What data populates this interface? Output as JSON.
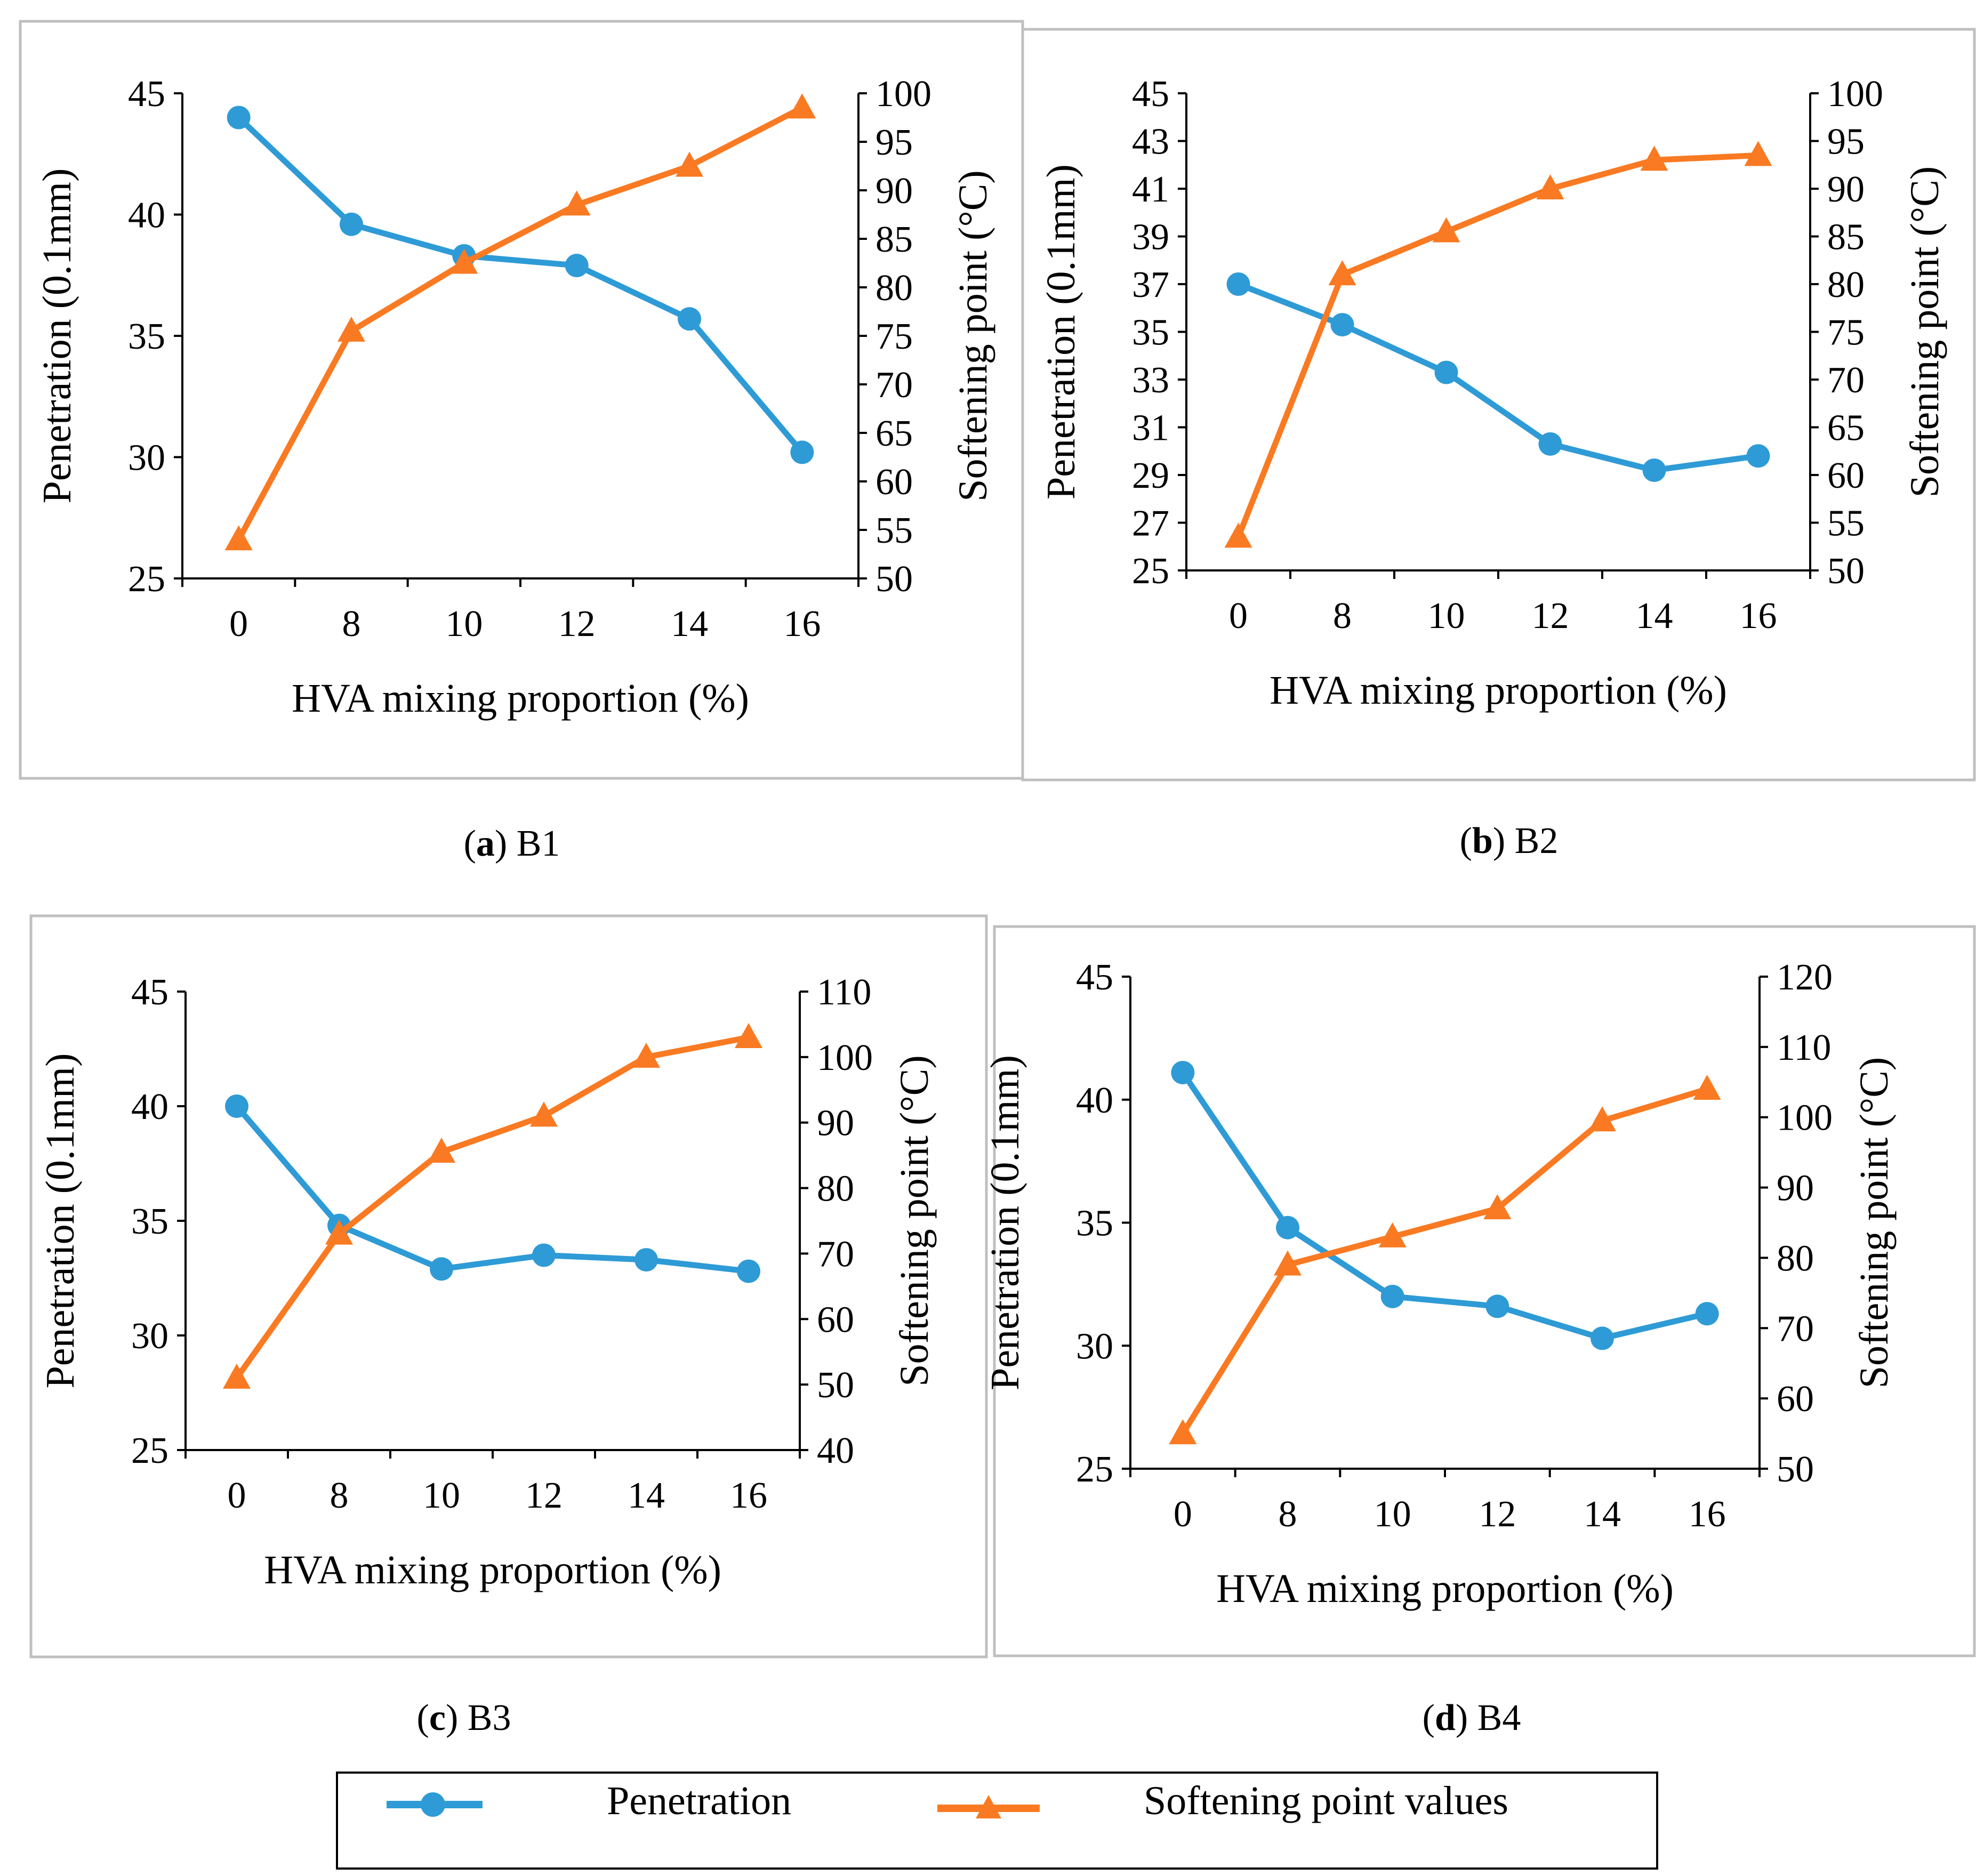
{
  "colors": {
    "penetration": "#2E9BD6",
    "softening": "#F97A22",
    "panel_border": "#BFBFBF",
    "legend_border": "#000000"
  },
  "legend": {
    "penetration_label": "Penetration",
    "softening_label": "Softening point values"
  },
  "chart_data": [
    {
      "type": "line",
      "id": "a",
      "caption_letter": "a",
      "caption_text": ") B1",
      "categories": [
        "0",
        "8",
        "10",
        "12",
        "14",
        "16"
      ],
      "xlabel": "HVA mixing proportion (%)",
      "ylabel": "Penetration (0.1mm)",
      "y2label": "Softening point (°C)",
      "ylim": [
        25,
        45
      ],
      "yticks": [
        25,
        30,
        35,
        40,
        45
      ],
      "y2lim": [
        50,
        100
      ],
      "y2ticks": [
        50,
        55,
        60,
        65,
        70,
        75,
        80,
        85,
        90,
        95,
        100
      ],
      "series": [
        {
          "name": "Penetration",
          "axis": "left",
          "marker": "circle",
          "values": [
            44.0,
            39.6,
            38.3,
            37.9,
            35.7,
            30.2
          ]
        },
        {
          "name": "Softening point values",
          "axis": "right",
          "marker": "triangle",
          "values": [
            54,
            75.5,
            82.5,
            88.5,
            92.5,
            98.5
          ]
        }
      ]
    },
    {
      "type": "line",
      "id": "b",
      "caption_letter": "b",
      "caption_text": ") B2",
      "categories": [
        "0",
        "8",
        "10",
        "12",
        "14",
        "16"
      ],
      "xlabel": "HVA mixing proportion (%)",
      "ylabel": "Penetration (0.1mm)",
      "y2label": "Softening point (°C)",
      "ylim": [
        25,
        45
      ],
      "yticks": [
        25,
        27,
        29,
        31,
        33,
        35,
        37,
        39,
        41,
        43,
        45
      ],
      "y2lim": [
        50,
        100
      ],
      "y2ticks": [
        50,
        55,
        60,
        65,
        70,
        75,
        80,
        85,
        90,
        95,
        100
      ],
      "series": [
        {
          "name": "Penetration",
          "axis": "left",
          "marker": "circle",
          "values": [
            37.0,
            35.3,
            33.3,
            30.3,
            29.2,
            29.8
          ]
        },
        {
          "name": "Softening point values",
          "axis": "right",
          "marker": "triangle",
          "values": [
            53.5,
            81,
            85.5,
            90,
            93,
            93.5
          ]
        }
      ]
    },
    {
      "type": "line",
      "id": "c",
      "caption_letter": "c",
      "caption_text": ") B3",
      "categories": [
        "0",
        "8",
        "10",
        "12",
        "14",
        "16"
      ],
      "xlabel": "HVA mixing proportion (%)",
      "ylabel": "Penetration (0.1mm)",
      "y2label": "Softening point (°C)",
      "ylim": [
        25,
        45
      ],
      "yticks": [
        25,
        30,
        35,
        40,
        45
      ],
      "y2lim": [
        40,
        110
      ],
      "y2ticks": [
        40,
        50,
        60,
        70,
        80,
        90,
        100,
        110
      ],
      "series": [
        {
          "name": "Penetration",
          "axis": "left",
          "marker": "circle",
          "values": [
            40.0,
            34.8,
            32.9,
            33.5,
            33.3,
            32.8
          ]
        },
        {
          "name": "Softening point values",
          "axis": "right",
          "marker": "triangle",
          "values": [
            51,
            73,
            85.5,
            91,
            100,
            103
          ]
        }
      ]
    },
    {
      "type": "line",
      "id": "d",
      "caption_letter": "d",
      "caption_text": ") B4",
      "categories": [
        "0",
        "8",
        "10",
        "12",
        "14",
        "16"
      ],
      "xlabel": "HVA mixing proportion (%)",
      "ylabel": "Penetration (0.1mm)",
      "y2label": "Softening point (°C)",
      "ylim": [
        25,
        45
      ],
      "yticks": [
        25,
        30,
        35,
        40,
        45
      ],
      "y2lim": [
        50,
        120
      ],
      "y2ticks": [
        50,
        60,
        70,
        80,
        90,
        100,
        110,
        120
      ],
      "series": [
        {
          "name": "Penetration",
          "axis": "left",
          "marker": "circle",
          "values": [
            41.1,
            34.8,
            32.0,
            31.6,
            30.3,
            31.3
          ]
        },
        {
          "name": "Softening point values",
          "axis": "right",
          "marker": "triangle",
          "values": [
            55,
            79,
            83,
            87,
            99.5,
            104
          ]
        }
      ]
    }
  ]
}
